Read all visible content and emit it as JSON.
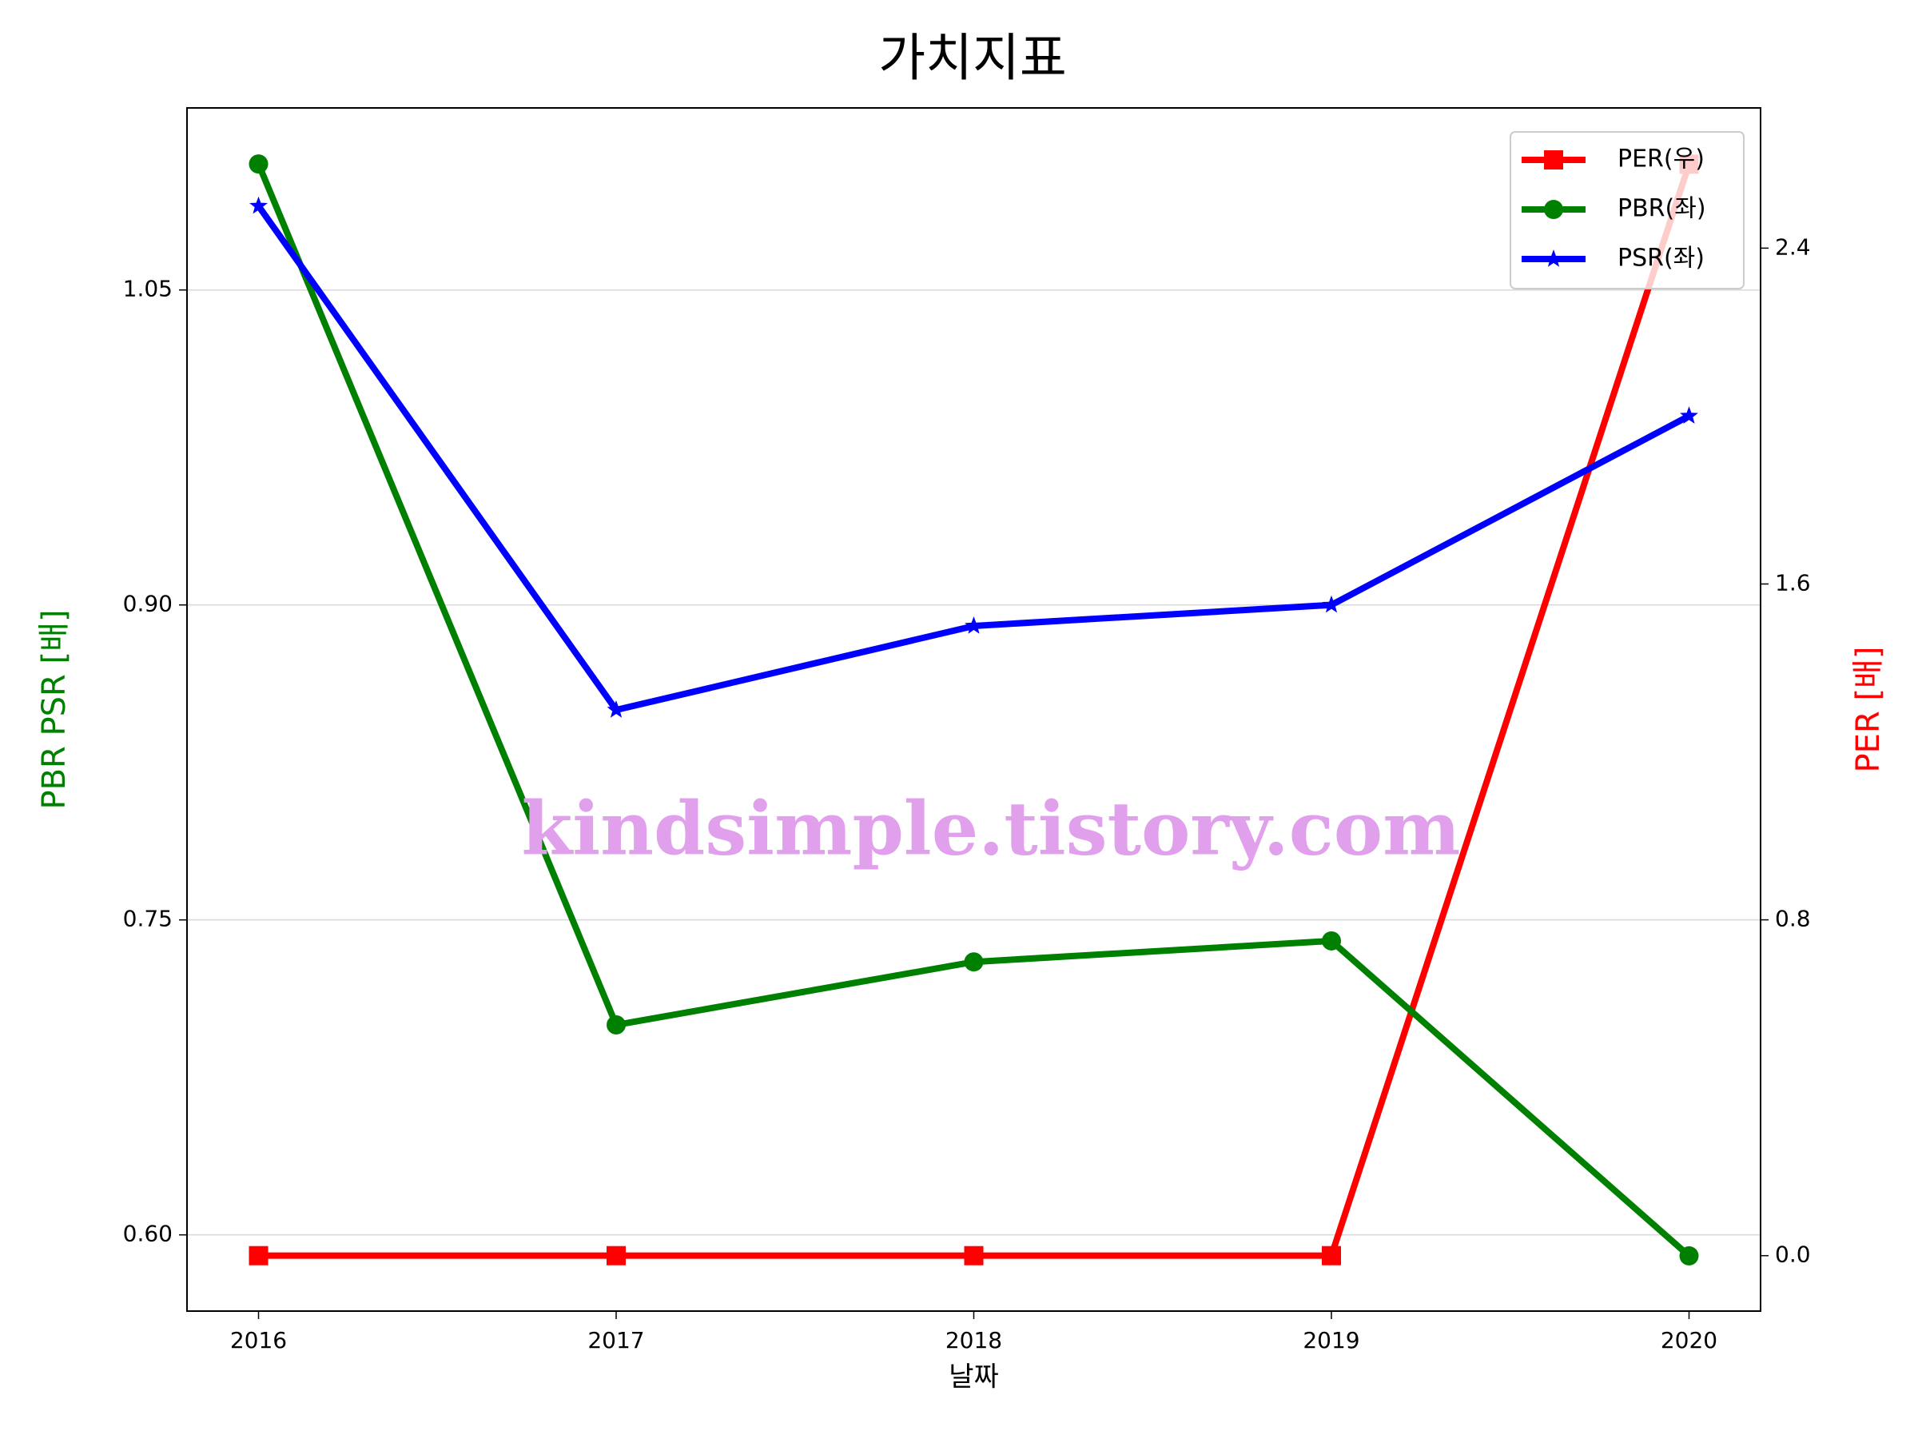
{
  "chart_data": {
    "type": "line",
    "title": "가치지표",
    "x_label": "날짜",
    "y_label": "PBR PSR [배]",
    "y2_label": "PER [배]",
    "y_label_color": "green",
    "y2_label_color": "red",
    "x": [
      2016,
      2017,
      2018,
      2019,
      2020
    ],
    "xlim": [
      2015.8,
      2020.2
    ],
    "xticks": [
      2016,
      2017,
      2018,
      2019,
      2020
    ],
    "ylim": [
      0.5637,
      1.1367
    ],
    "yticks": [
      {
        "value": 0.6,
        "label": "0.60"
      },
      0.75,
      {
        "value": 0.9,
        "label": "0.90"
      },
      1.05
    ],
    "y2lim": [
      -0.132,
      2.734
    ],
    "y2ticks": [
      {
        "value": 0,
        "label": "0.0"
      },
      0.8,
      1.6,
      2.4
    ],
    "grid": true,
    "legend": "upper right",
    "annotation": "kindsimple.tistory.com",
    "series": [
      {
        "name": "PER(우)",
        "color": "red",
        "marker": "square",
        "axis": "y2",
        "values": [
          0,
          0,
          0,
          0,
          2.6
        ]
      },
      {
        "name": "PBR(좌)",
        "color": "green",
        "marker": "circle",
        "values": [
          1.11,
          0.7,
          0.73,
          0.74,
          0.59
        ]
      },
      {
        "name": "PSR(좌)",
        "color": "blue",
        "marker": "star",
        "values": [
          1.09,
          0.85,
          0.89,
          0.9,
          0.99
        ]
      }
    ]
  }
}
